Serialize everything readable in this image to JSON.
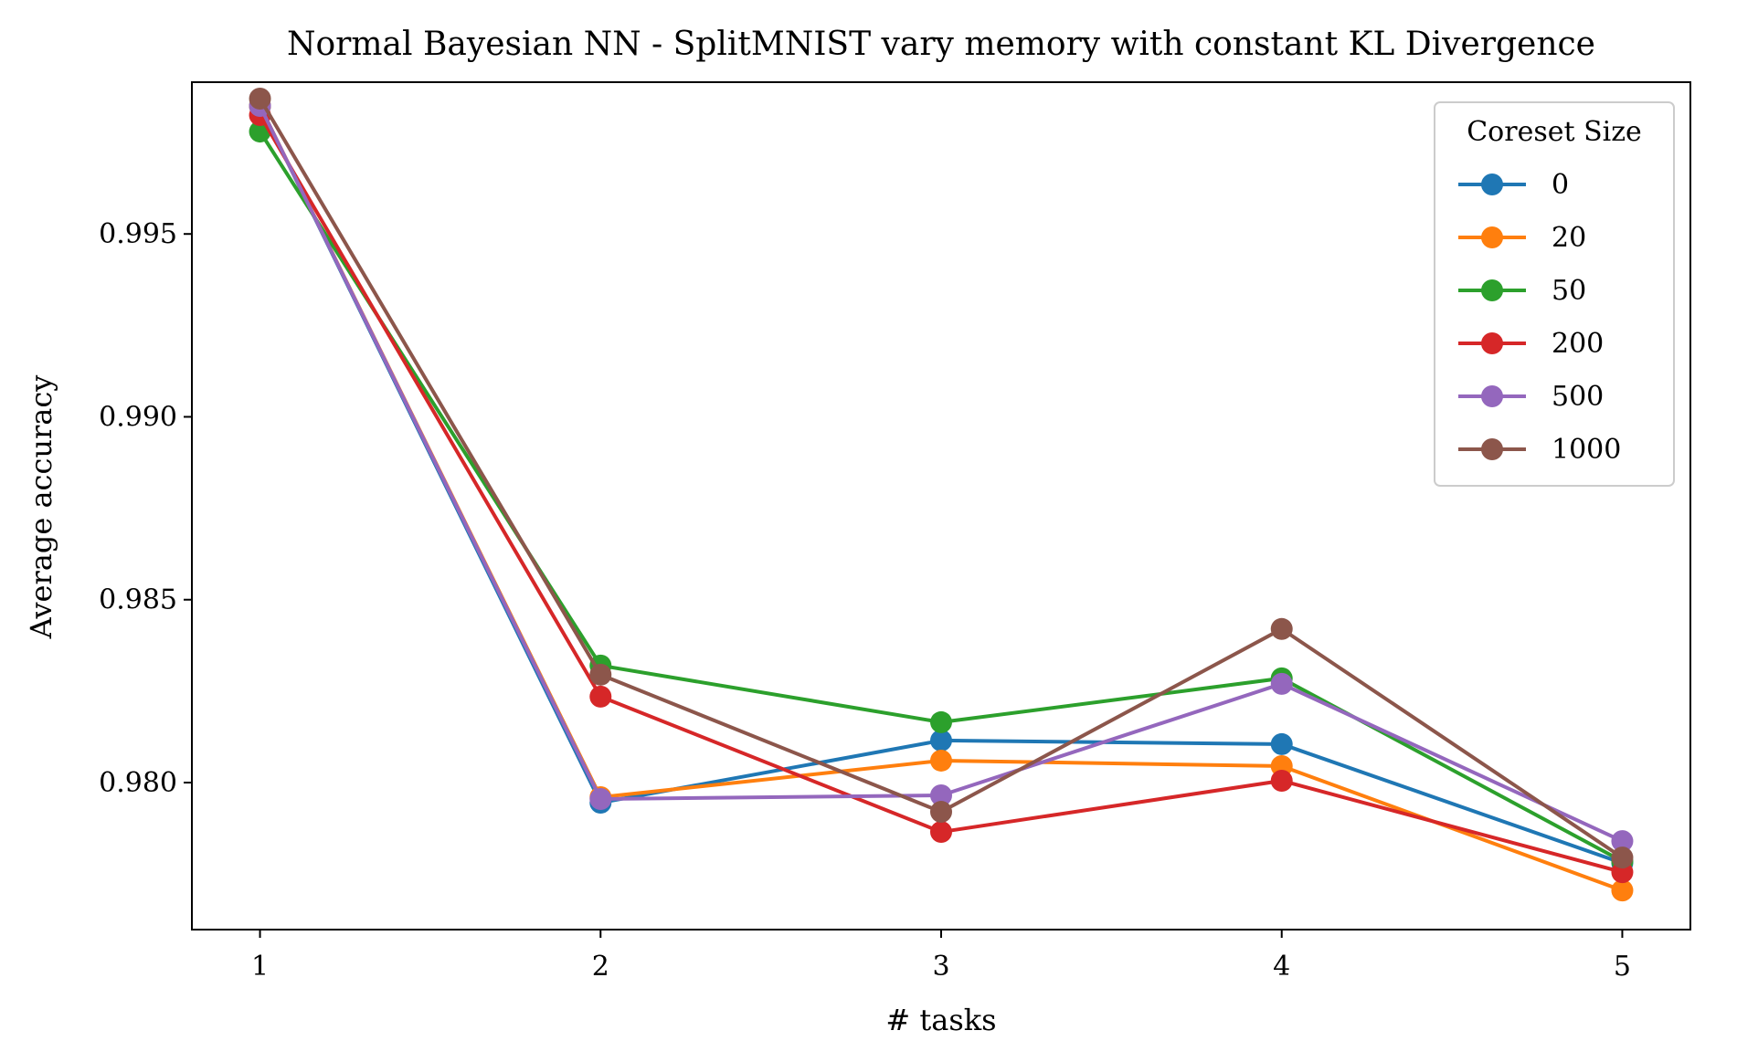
{
  "chart_data": {
    "type": "line",
    "title": "Normal Bayesian NN - SplitMNIST vary memory with constant KL Divergence",
    "xlabel": "# tasks",
    "ylabel": "Average accuracy",
    "x": [
      1,
      2,
      3,
      4,
      5
    ],
    "x_ticks": [
      "1",
      "2",
      "3",
      "4",
      "5"
    ],
    "xlim": [
      0.8,
      5.2
    ],
    "ylim": [
      0.97598,
      0.99915
    ],
    "y_ticks": [
      0.98,
      0.985,
      0.99,
      0.995
    ],
    "y_tick_labels": [
      "0.980",
      "0.985",
      "0.990",
      "0.995"
    ],
    "grid": false,
    "legend": {
      "title": "Coreset Size",
      "placement": "top-right"
    },
    "series": [
      {
        "name": "0",
        "color": "#1f77b4",
        "values": [
          0.9985,
          0.97945,
          0.98115,
          0.98105,
          0.9778
        ]
      },
      {
        "name": "20",
        "color": "#ff7f0e",
        "values": [
          0.9985,
          0.9796,
          0.9806,
          0.98045,
          0.97705
        ]
      },
      {
        "name": "50",
        "color": "#2ca02c",
        "values": [
          0.9978,
          0.9832,
          0.98165,
          0.98285,
          0.97785
        ]
      },
      {
        "name": "200",
        "color": "#d62728",
        "values": [
          0.99825,
          0.98235,
          0.97865,
          0.98005,
          0.97755
        ]
      },
      {
        "name": "500",
        "color": "#9467bd",
        "values": [
          0.9985,
          0.97955,
          0.97965,
          0.9827,
          0.9784
        ]
      },
      {
        "name": "1000",
        "color": "#8c564b",
        "values": [
          0.9987,
          0.98295,
          0.9792,
          0.9842,
          0.97795
        ]
      }
    ]
  }
}
